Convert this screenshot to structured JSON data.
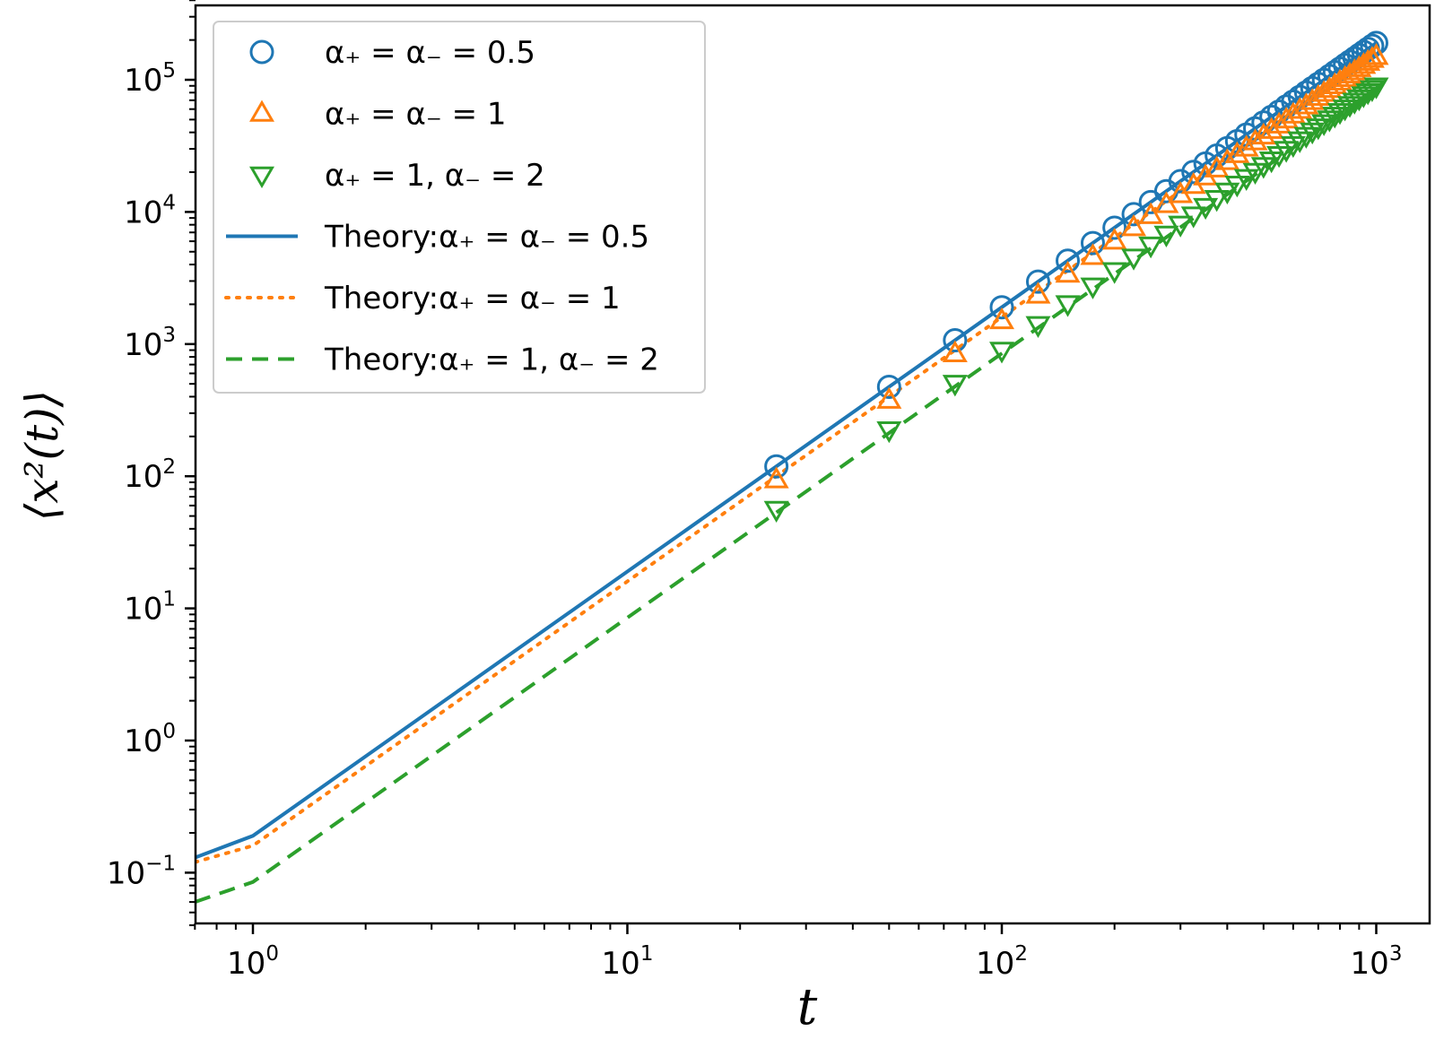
{
  "chart_data": {
    "type": "scatter",
    "xlabel": "t",
    "ylabel": "⟨x²(t)⟩",
    "xscale": "log",
    "yscale": "log",
    "xlim": [
      0.7,
      1300
    ],
    "ylim": [
      0.035,
      500000
    ],
    "grid": false,
    "legend_position": "upper-left",
    "x_ticks": [
      {
        "base": "10",
        "exp": "0",
        "value": 1
      },
      {
        "base": "10",
        "exp": "1",
        "value": 10
      },
      {
        "base": "10",
        "exp": "2",
        "value": 100
      },
      {
        "base": "10",
        "exp": "3",
        "value": 1000
      }
    ],
    "y_ticks": [
      {
        "base": "10",
        "exp": "−1",
        "value": 0.1
      },
      {
        "base": "10",
        "exp": "0",
        "value": 1
      },
      {
        "base": "10",
        "exp": "1",
        "value": 10
      },
      {
        "base": "10",
        "exp": "2",
        "value": 100
      },
      {
        "base": "10",
        "exp": "3",
        "value": 1000
      },
      {
        "base": "10",
        "exp": "4",
        "value": 10000
      },
      {
        "base": "10",
        "exp": "5",
        "value": 100000
      }
    ],
    "series": [
      {
        "name": "α₊ = α₋ = 0.5",
        "kind": "markers",
        "marker": "circle",
        "color": "#1f77b4",
        "coef": 0.19,
        "power": 2
      },
      {
        "name": "α₊ = α₋ = 1",
        "kind": "markers",
        "marker": "triangle-up",
        "color": "#ff7f0e",
        "coef": 0.15,
        "power": 2
      },
      {
        "name": "α₊ = 1, α₋ = 2",
        "kind": "markers",
        "marker": "triangle-down",
        "color": "#2ca02c",
        "coef": 0.09,
        "power": 2
      },
      {
        "name": "Theory:α₊ = α₋ = 0.5",
        "kind": "line",
        "style": "solid",
        "color": "#1f77b4",
        "x": [
          0.7,
          1,
          1000
        ],
        "y": [
          0.13,
          0.19,
          190000
        ]
      },
      {
        "name": "Theory:α₊ = α₋ = 1",
        "kind": "line",
        "style": "dotted",
        "color": "#ff7f0e",
        "x": [
          0.7,
          1,
          1000
        ],
        "y": [
          0.12,
          0.16,
          160000
        ]
      },
      {
        "name": "Theory:α₊ = 1, α₋ = 2",
        "kind": "line",
        "style": "dashed",
        "color": "#2ca02c",
        "x": [
          0.7,
          1,
          1000
        ],
        "y": [
          0.06,
          0.085,
          85000
        ]
      }
    ],
    "marker_x": [
      25,
      50,
      75,
      100,
      125,
      150,
      175,
      200,
      225,
      250,
      275,
      300,
      325,
      350,
      375,
      400,
      425,
      450,
      475,
      500,
      525,
      550,
      575,
      600,
      625,
      650,
      675,
      700,
      725,
      750,
      775,
      800,
      825,
      850,
      875,
      900,
      925,
      950,
      975,
      1000
    ]
  }
}
